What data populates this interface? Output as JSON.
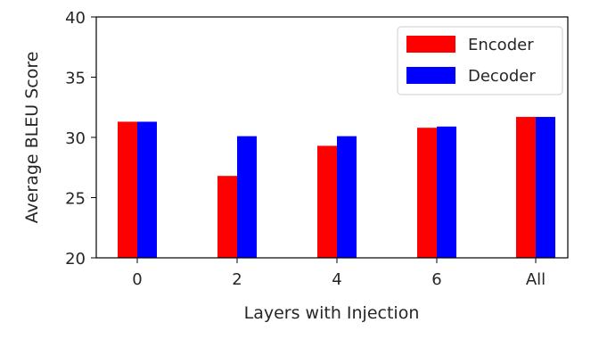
{
  "chart_data": {
    "type": "bar",
    "title": "",
    "xlabel": "Layers with Injection",
    "ylabel": "Average BLEU Score",
    "categories": [
      "0",
      "2",
      "4",
      "6",
      "All"
    ],
    "series": [
      {
        "name": "Encoder",
        "color": "#ff0000",
        "values": [
          31.3,
          26.8,
          29.3,
          30.8,
          31.7
        ]
      },
      {
        "name": "Decoder",
        "color": "#0000ff",
        "values": [
          31.3,
          30.1,
          30.1,
          30.9,
          31.7
        ]
      }
    ],
    "ylim": [
      20,
      40
    ],
    "yticks": [
      20,
      25,
      30,
      35,
      40
    ],
    "grid": false,
    "legend_position": "upper right"
  }
}
